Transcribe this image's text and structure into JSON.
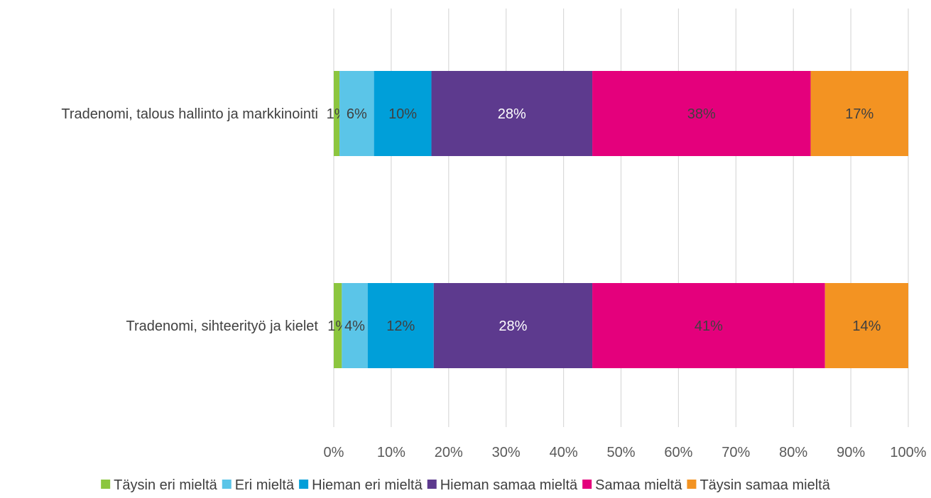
{
  "chart_data": {
    "type": "bar",
    "orientation": "horizontal",
    "stacked": "percent",
    "categories": [
      "Tradenomi, talous hallinto ja markkinointi",
      "Tradenomi, sihteerityö ja kielet"
    ],
    "series": [
      {
        "name": "Täysin eri mieltä",
        "color": "#8cc63f",
        "label_color": "#404040",
        "values": [
          1,
          1.4
        ],
        "labels": [
          "1%",
          "1%"
        ]
      },
      {
        "name": "Eri mieltä",
        "color": "#5bc5e8",
        "label_color": "#404040",
        "values": [
          6,
          4.5
        ],
        "labels": [
          "6%",
          "4%"
        ]
      },
      {
        "name": "Hieman eri mieltä",
        "color": "#009fd9",
        "label_color": "#404040",
        "values": [
          10,
          11.5
        ],
        "labels": [
          "10%",
          "12%"
        ]
      },
      {
        "name": "Hieman samaa mieltä",
        "color": "#5d3a8e",
        "label_color": "#ffffff",
        "values": [
          28,
          27.6
        ],
        "labels": [
          "28%",
          "28%"
        ]
      },
      {
        "name": "Samaa mieltä",
        "color": "#e4007c",
        "label_color": "#404040",
        "values": [
          38,
          40.5
        ],
        "labels": [
          "38%",
          "41%"
        ]
      },
      {
        "name": "Täysin samaa mieltä",
        "color": "#f39322",
        "label_color": "#404040",
        "values": [
          17,
          14.5
        ],
        "labels": [
          "17%",
          "14%"
        ]
      }
    ],
    "x_ticks": [
      "0%",
      "10%",
      "20%",
      "30%",
      "40%",
      "50%",
      "60%",
      "70%",
      "80%",
      "90%",
      "100%"
    ],
    "xlim": [
      0,
      100
    ],
    "grid": "vertical",
    "legend": "bottom",
    "title": "",
    "xlabel": "",
    "ylabel": ""
  }
}
